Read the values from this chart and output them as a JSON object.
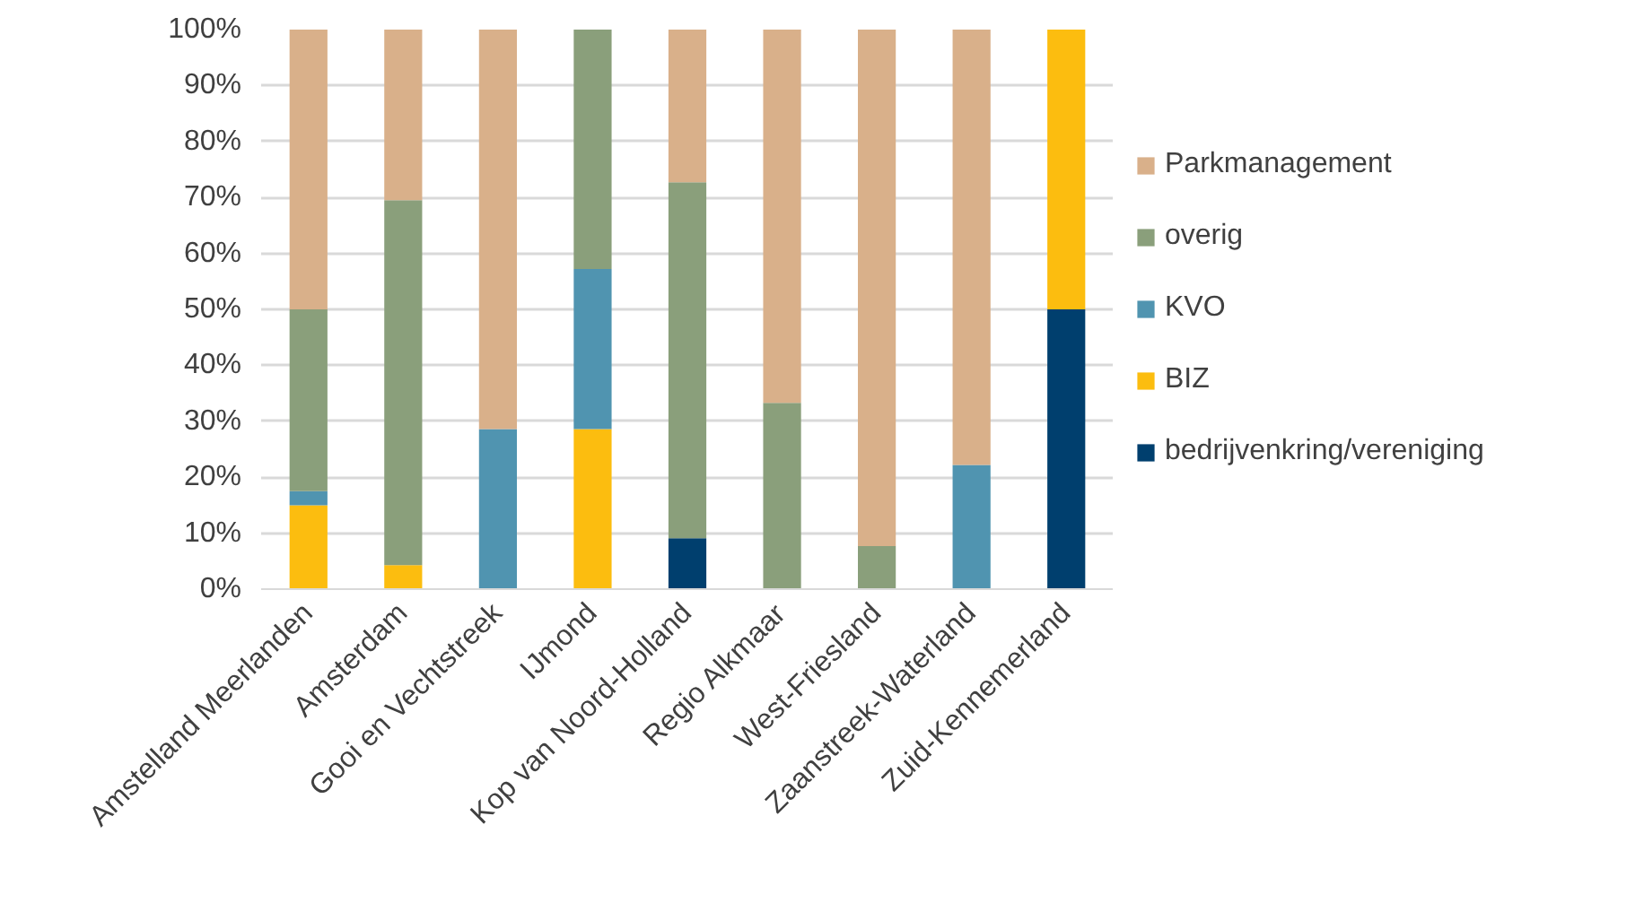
{
  "chart_data": {
    "type": "bar",
    "stacked": true,
    "categories": [
      "Amstelland Meerlanden",
      "Amsterdam",
      "Gooi en Vechtstreek",
      "IJmond",
      "Kop van Noord-Holland",
      "Regio Alkmaar",
      "West-Friesland",
      "Zaanstreek-Waterland",
      "Zuid-Kennemerland"
    ],
    "series": [
      {
        "name": "bedrijvenkring/vereniging",
        "color": "#003f6e",
        "values": [
          0,
          0,
          0,
          0,
          9.1,
          0,
          0,
          0,
          50
        ]
      },
      {
        "name": "BIZ",
        "color": "#fcbd0f",
        "values": [
          15,
          4.3,
          0,
          28.6,
          0,
          0,
          0,
          0,
          50
        ]
      },
      {
        "name": "KVO",
        "color": "#5094b0",
        "values": [
          2.5,
          0,
          28.6,
          28.6,
          0,
          0,
          0,
          22.2,
          0
        ]
      },
      {
        "name": "overig",
        "color": "#8a9f7b",
        "values": [
          32.5,
          65.2,
          0,
          42.9,
          63.6,
          33.3,
          7.7,
          0,
          0
        ]
      },
      {
        "name": "Parkmanagement",
        "color": "#d9b08a",
        "values": [
          50,
          30.5,
          71.4,
          0,
          27.3,
          66.7,
          92.3,
          77.8,
          0
        ]
      }
    ],
    "ylim": [
      0,
      100
    ],
    "yticks": [
      {
        "value": 0,
        "label": "0%"
      },
      {
        "value": 10,
        "label": "10%"
      },
      {
        "value": 20,
        "label": "20%"
      },
      {
        "value": 30,
        "label": "30%"
      },
      {
        "value": 40,
        "label": "40%"
      },
      {
        "value": 50,
        "label": "50%"
      },
      {
        "value": 60,
        "label": "60%"
      },
      {
        "value": 70,
        "label": "70%"
      },
      {
        "value": 80,
        "label": "80%"
      },
      {
        "value": 90,
        "label": "90%"
      },
      {
        "value": 100,
        "label": "100%"
      }
    ],
    "grid": "y",
    "legend": "right"
  }
}
